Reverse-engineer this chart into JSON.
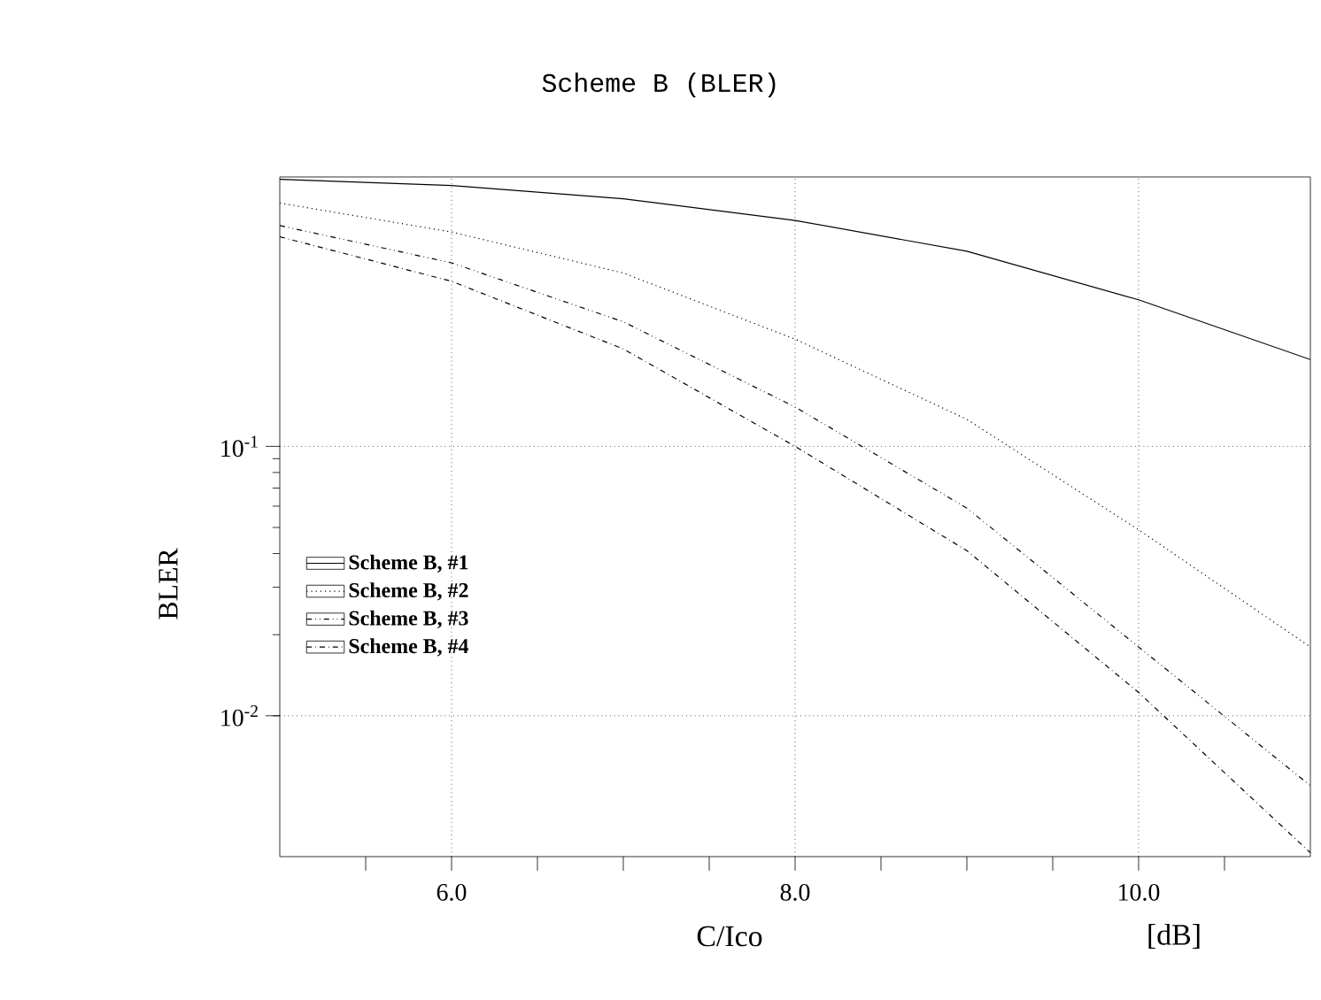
{
  "chart_data": {
    "type": "line",
    "title": "Scheme B (BLER)",
    "xlabel": "C/Ico",
    "ylabel": "BLER",
    "annotations": [
      "[dB]"
    ],
    "x": [
      5,
      6,
      7,
      8,
      9,
      10,
      11
    ],
    "series": [
      {
        "name": "Scheme B, #1",
        "color": "#000000",
        "line_style": "solid",
        "values": [
          0.98,
          0.93,
          0.83,
          0.69,
          0.53,
          0.35,
          0.21
        ]
      },
      {
        "name": "Scheme B, #2",
        "color": "#000000",
        "line_style": "dotted",
        "values": [
          0.8,
          0.625,
          0.44,
          0.25,
          0.126,
          0.049,
          0.018
        ]
      },
      {
        "name": "Scheme B, #3",
        "color": "#000000",
        "line_style": "dashdotdotted",
        "values": [
          0.66,
          0.48,
          0.29,
          0.14,
          0.059,
          0.018,
          0.0055
        ]
      },
      {
        "name": "Scheme B, #4",
        "color": "#000000",
        "line_style": "dashdotted",
        "values": [
          0.6,
          0.41,
          0.23,
          0.1,
          0.041,
          0.0122,
          0.0031
        ]
      }
    ],
    "xlim": [
      5,
      11
    ],
    "xticks": [
      {
        "value": 5.5,
        "label": null
      },
      {
        "value": 6,
        "label": "6.0"
      },
      {
        "value": 6.5,
        "label": null
      },
      {
        "value": 7,
        "label": null
      },
      {
        "value": 7.5,
        "label": null
      },
      {
        "value": 8,
        "label": "8.0"
      },
      {
        "value": 8.5,
        "label": null
      },
      {
        "value": 9,
        "label": null
      },
      {
        "value": 9.5,
        "label": null
      },
      {
        "value": 10,
        "label": "10.0"
      },
      {
        "value": 10.5,
        "label": null
      }
    ],
    "ylim": [
      0.003,
      1
    ],
    "yticks": [
      {
        "value": 0.01,
        "label": "10$^{-2}$"
      },
      {
        "value": 0.1,
        "label": "10$^{-1}$"
      }
    ],
    "log": "y",
    "grid": true,
    "legend": "left",
    "marker": "none"
  }
}
